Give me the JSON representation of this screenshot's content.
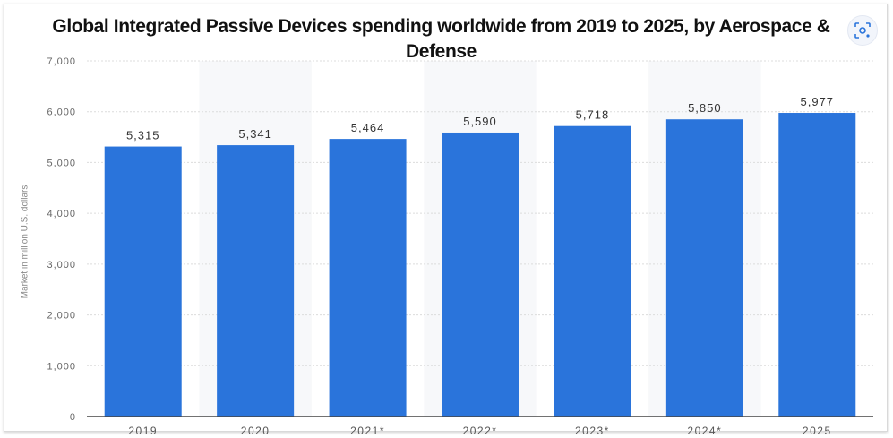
{
  "chart_data": {
    "type": "bar",
    "title": "Global Integrated Passive Devices spending worldwide from 2019 to 2025, by Aerospace & Defense",
    "ylabel": "Market in million U.S. dollars",
    "xlabel": "",
    "categories": [
      "2019",
      "2020",
      "2021*",
      "2022*",
      "2023*",
      "2024*",
      "2025"
    ],
    "values": [
      5315,
      5341,
      5464,
      5590,
      5718,
      5850,
      5977
    ],
    "data_labels": [
      "5,315",
      "5,341",
      "5,464",
      "5,590",
      "5,718",
      "5,850",
      "5,977"
    ],
    "ylim": [
      0,
      7000
    ],
    "yticks": [
      0,
      1000,
      2000,
      3000,
      4000,
      5000,
      6000,
      7000
    ],
    "ytick_labels": [
      "0",
      "1,000",
      "2,000",
      "3,000",
      "4,000",
      "5,000",
      "6,000",
      "7,000"
    ],
    "grid": true,
    "bar_color": "#2a74db",
    "alt_band_color": "#f7f8fa"
  },
  "toolbar": {
    "lens_icon": "lens-search-icon"
  }
}
